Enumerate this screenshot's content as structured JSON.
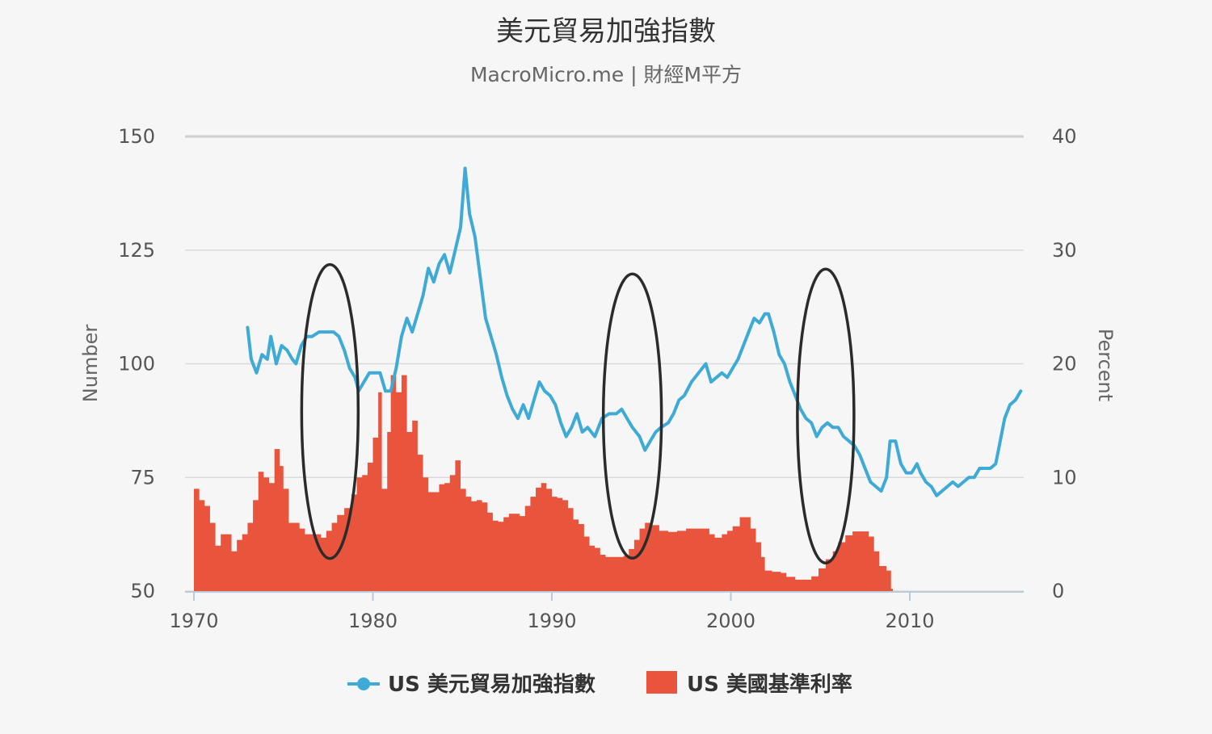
{
  "chart_data": {
    "type": "line+area",
    "title": "美元貿易加強指數",
    "subtitle": "MacroMicro.me | 財經M平方",
    "y_left": {
      "label": "Number",
      "ticks": [
        "150",
        "125",
        "100",
        "75",
        "50"
      ],
      "range": [
        50,
        150
      ]
    },
    "y_right": {
      "label": "Percent",
      "ticks": [
        "40",
        "30",
        "20",
        "10",
        "0"
      ],
      "range": [
        0,
        40
      ]
    },
    "x": {
      "ticks": [
        "1970",
        "1980",
        "1990",
        "2000",
        "2010"
      ],
      "range": [
        1970,
        2016.5
      ]
    },
    "grid": true,
    "legend_position": "bottom-center",
    "series": [
      {
        "name": "US 美元貿易加強指數",
        "type": "line",
        "axis": "left",
        "color": "#3eaad5",
        "points": [
          [
            1973.0,
            108
          ],
          [
            1973.2,
            101
          ],
          [
            1973.5,
            98
          ],
          [
            1973.8,
            102
          ],
          [
            1974.1,
            101
          ],
          [
            1974.3,
            106
          ],
          [
            1974.6,
            100
          ],
          [
            1974.9,
            104
          ],
          [
            1975.2,
            103
          ],
          [
            1975.5,
            101
          ],
          [
            1975.7,
            100
          ],
          [
            1976.0,
            104
          ],
          [
            1976.3,
            106
          ],
          [
            1976.6,
            106
          ],
          [
            1977.0,
            107
          ],
          [
            1977.4,
            107
          ],
          [
            1977.8,
            107
          ],
          [
            1978.1,
            106
          ],
          [
            1978.4,
            103
          ],
          [
            1978.7,
            99
          ],
          [
            1979.0,
            97
          ],
          [
            1979.2,
            94
          ],
          [
            1979.5,
            96
          ],
          [
            1979.8,
            98
          ],
          [
            1980.1,
            98
          ],
          [
            1980.4,
            98
          ],
          [
            1980.7,
            94
          ],
          [
            1981.0,
            94
          ],
          [
            1981.3,
            99
          ],
          [
            1981.6,
            106
          ],
          [
            1981.9,
            110
          ],
          [
            1982.2,
            107
          ],
          [
            1982.5,
            111
          ],
          [
            1982.8,
            115
          ],
          [
            1983.1,
            121
          ],
          [
            1983.4,
            118
          ],
          [
            1983.7,
            122
          ],
          [
            1984.0,
            124
          ],
          [
            1984.3,
            120
          ],
          [
            1984.6,
            125
          ],
          [
            1984.9,
            130
          ],
          [
            1985.15,
            143
          ],
          [
            1985.4,
            133
          ],
          [
            1985.7,
            128
          ],
          [
            1986.0,
            119
          ],
          [
            1986.3,
            110
          ],
          [
            1986.6,
            106
          ],
          [
            1986.9,
            102
          ],
          [
            1987.2,
            97
          ],
          [
            1987.5,
            93
          ],
          [
            1987.8,
            90
          ],
          [
            1988.1,
            88
          ],
          [
            1988.4,
            91
          ],
          [
            1988.7,
            88
          ],
          [
            1989.0,
            92
          ],
          [
            1989.3,
            96
          ],
          [
            1989.6,
            94
          ],
          [
            1989.9,
            93
          ],
          [
            1990.2,
            91
          ],
          [
            1990.5,
            87
          ],
          [
            1990.8,
            84
          ],
          [
            1991.1,
            86
          ],
          [
            1991.4,
            89
          ],
          [
            1991.7,
            85
          ],
          [
            1992.0,
            86
          ],
          [
            1992.4,
            84
          ],
          [
            1992.8,
            88
          ],
          [
            1993.2,
            89
          ],
          [
            1993.6,
            89
          ],
          [
            1993.9,
            90
          ],
          [
            1994.2,
            88
          ],
          [
            1994.5,
            86
          ],
          [
            1994.9,
            84
          ],
          [
            1995.2,
            81
          ],
          [
            1995.5,
            83
          ],
          [
            1995.8,
            85
          ],
          [
            1996.1,
            86
          ],
          [
            1996.5,
            87
          ],
          [
            1996.8,
            89
          ],
          [
            1997.1,
            92
          ],
          [
            1997.4,
            93
          ],
          [
            1997.8,
            96
          ],
          [
            1998.2,
            98
          ],
          [
            1998.6,
            100
          ],
          [
            1998.9,
            96
          ],
          [
            1999.2,
            97
          ],
          [
            1999.5,
            98
          ],
          [
            1999.8,
            97
          ],
          [
            2000.1,
            99
          ],
          [
            2000.4,
            101
          ],
          [
            2000.7,
            104
          ],
          [
            2001.0,
            107
          ],
          [
            2001.3,
            110
          ],
          [
            2001.6,
            109
          ],
          [
            2001.9,
            111
          ],
          [
            2002.1,
            111
          ],
          [
            2002.4,
            107
          ],
          [
            2002.7,
            102
          ],
          [
            2003.0,
            100
          ],
          [
            2003.3,
            96
          ],
          [
            2003.6,
            93
          ],
          [
            2003.9,
            90
          ],
          [
            2004.2,
            88
          ],
          [
            2004.5,
            87
          ],
          [
            2004.8,
            84
          ],
          [
            2005.1,
            86
          ],
          [
            2005.4,
            87
          ],
          [
            2005.7,
            86
          ],
          [
            2006.0,
            86
          ],
          [
            2006.3,
            84
          ],
          [
            2006.6,
            83
          ],
          [
            2006.9,
            82
          ],
          [
            2007.2,
            80
          ],
          [
            2007.5,
            77
          ],
          [
            2007.8,
            74
          ],
          [
            2008.1,
            73
          ],
          [
            2008.4,
            72
          ],
          [
            2008.7,
            75
          ],
          [
            2008.9,
            83
          ],
          [
            2009.2,
            83
          ],
          [
            2009.5,
            78
          ],
          [
            2009.8,
            76
          ],
          [
            2010.1,
            76
          ],
          [
            2010.4,
            78
          ],
          [
            2010.6,
            76
          ],
          [
            2010.9,
            74
          ],
          [
            2011.2,
            73
          ],
          [
            2011.5,
            71
          ],
          [
            2011.8,
            72
          ],
          [
            2012.1,
            73
          ],
          [
            2012.4,
            74
          ],
          [
            2012.7,
            73
          ],
          [
            2013.0,
            74
          ],
          [
            2013.3,
            75
          ],
          [
            2013.6,
            75
          ],
          [
            2013.9,
            77
          ],
          [
            2014.2,
            77
          ],
          [
            2014.5,
            77
          ],
          [
            2014.8,
            78
          ],
          [
            2015.0,
            82
          ],
          [
            2015.3,
            88
          ],
          [
            2015.6,
            91
          ],
          [
            2015.9,
            92
          ],
          [
            2016.2,
            94
          ]
        ]
      },
      {
        "name": "US 美國基準利率",
        "type": "area",
        "axis": "right",
        "color": "#e8543c",
        "points": [
          [
            1970.0,
            9.0
          ],
          [
            1970.3,
            8.0
          ],
          [
            1970.6,
            7.5
          ],
          [
            1970.9,
            6.0
          ],
          [
            1971.2,
            4.0
          ],
          [
            1971.5,
            5.0
          ],
          [
            1971.8,
            5.0
          ],
          [
            1972.1,
            3.5
          ],
          [
            1972.4,
            4.5
          ],
          [
            1972.7,
            5.0
          ],
          [
            1973.0,
            6.0
          ],
          [
            1973.3,
            8.0
          ],
          [
            1973.6,
            10.5
          ],
          [
            1973.9,
            10.0
          ],
          [
            1974.2,
            9.5
          ],
          [
            1974.5,
            12.5
          ],
          [
            1974.8,
            11.0
          ],
          [
            1975.0,
            9.0
          ],
          [
            1975.3,
            6.0
          ],
          [
            1975.6,
            6.0
          ],
          [
            1975.9,
            5.5
          ],
          [
            1976.2,
            5.0
          ],
          [
            1976.5,
            5.0
          ],
          [
            1976.8,
            5.0
          ],
          [
            1977.1,
            4.7
          ],
          [
            1977.4,
            5.3
          ],
          [
            1977.7,
            6.0
          ],
          [
            1978.0,
            6.7
          ],
          [
            1978.4,
            7.3
          ],
          [
            1978.8,
            8.5
          ],
          [
            1979.1,
            10.0
          ],
          [
            1979.4,
            10.2
          ],
          [
            1979.7,
            11.3
          ],
          [
            1980.0,
            13.5
          ],
          [
            1980.3,
            17.5
          ],
          [
            1980.5,
            9.0
          ],
          [
            1980.8,
            14.0
          ],
          [
            1981.0,
            19.0
          ],
          [
            1981.3,
            17.5
          ],
          [
            1981.6,
            19.0
          ],
          [
            1981.9,
            14.0
          ],
          [
            1982.2,
            15.0
          ],
          [
            1982.5,
            12.0
          ],
          [
            1982.8,
            10.0
          ],
          [
            1983.1,
            8.7
          ],
          [
            1983.4,
            8.7
          ],
          [
            1983.7,
            9.4
          ],
          [
            1984.0,
            9.5
          ],
          [
            1984.3,
            10.2
          ],
          [
            1984.6,
            11.5
          ],
          [
            1984.9,
            9.0
          ],
          [
            1985.2,
            8.3
          ],
          [
            1985.5,
            7.9
          ],
          [
            1985.8,
            8.0
          ],
          [
            1986.1,
            7.8
          ],
          [
            1986.4,
            6.9
          ],
          [
            1986.7,
            6.2
          ],
          [
            1987.0,
            6.1
          ],
          [
            1987.3,
            6.5
          ],
          [
            1987.6,
            6.8
          ],
          [
            1987.9,
            6.8
          ],
          [
            1988.2,
            6.6
          ],
          [
            1988.5,
            7.5
          ],
          [
            1988.8,
            8.3
          ],
          [
            1989.1,
            9.1
          ],
          [
            1989.4,
            9.5
          ],
          [
            1989.7,
            9.0
          ],
          [
            1990.0,
            8.3
          ],
          [
            1990.3,
            8.2
          ],
          [
            1990.6,
            8.0
          ],
          [
            1990.9,
            7.3
          ],
          [
            1991.2,
            6.3
          ],
          [
            1991.5,
            5.9
          ],
          [
            1991.8,
            4.8
          ],
          [
            1992.1,
            4.0
          ],
          [
            1992.4,
            3.8
          ],
          [
            1992.7,
            3.2
          ],
          [
            1993.0,
            3.0
          ],
          [
            1993.5,
            3.0
          ],
          [
            1994.0,
            3.1
          ],
          [
            1994.3,
            3.7
          ],
          [
            1994.6,
            4.5
          ],
          [
            1994.9,
            5.5
          ],
          [
            1995.2,
            6.0
          ],
          [
            1995.6,
            5.8
          ],
          [
            1996.0,
            5.3
          ],
          [
            1996.5,
            5.2
          ],
          [
            1997.0,
            5.3
          ],
          [
            1997.5,
            5.5
          ],
          [
            1998.0,
            5.5
          ],
          [
            1998.5,
            5.5
          ],
          [
            1998.8,
            5.0
          ],
          [
            1999.1,
            4.7
          ],
          [
            1999.5,
            5.0
          ],
          [
            1999.8,
            5.3
          ],
          [
            2000.1,
            5.7
          ],
          [
            2000.5,
            6.5
          ],
          [
            2000.9,
            6.5
          ],
          [
            2001.1,
            5.5
          ],
          [
            2001.4,
            4.3
          ],
          [
            2001.7,
            3.0
          ],
          [
            2001.9,
            1.8
          ],
          [
            2002.3,
            1.7
          ],
          [
            2002.8,
            1.6
          ],
          [
            2003.1,
            1.25
          ],
          [
            2003.6,
            1.0
          ],
          [
            2004.1,
            1.0
          ],
          [
            2004.5,
            1.3
          ],
          [
            2004.9,
            2.0
          ],
          [
            2005.3,
            2.8
          ],
          [
            2005.7,
            3.5
          ],
          [
            2006.0,
            4.3
          ],
          [
            2006.4,
            4.9
          ],
          [
            2006.8,
            5.25
          ],
          [
            2007.3,
            5.25
          ],
          [
            2007.7,
            4.8
          ],
          [
            2008.0,
            3.5
          ],
          [
            2008.3,
            2.2
          ],
          [
            2008.7,
            1.8
          ],
          [
            2008.95,
            0.2
          ]
        ]
      }
    ]
  },
  "legend": [
    {
      "label": "US 美元貿易加強指數",
      "color": "#3eaad5",
      "kind": "line-marker"
    },
    {
      "label": "US 美國基準利率",
      "color": "#e8543c",
      "kind": "area"
    }
  ],
  "annotations": [
    {
      "type": "ellipse",
      "center_x": 1977.6,
      "center_y_left": 89.5
    },
    {
      "type": "ellipse",
      "center_x": 1994.5,
      "center_y_left": 88.5
    },
    {
      "type": "ellipse",
      "center_x": 2005.3,
      "center_y_left": 88.5
    }
  ]
}
